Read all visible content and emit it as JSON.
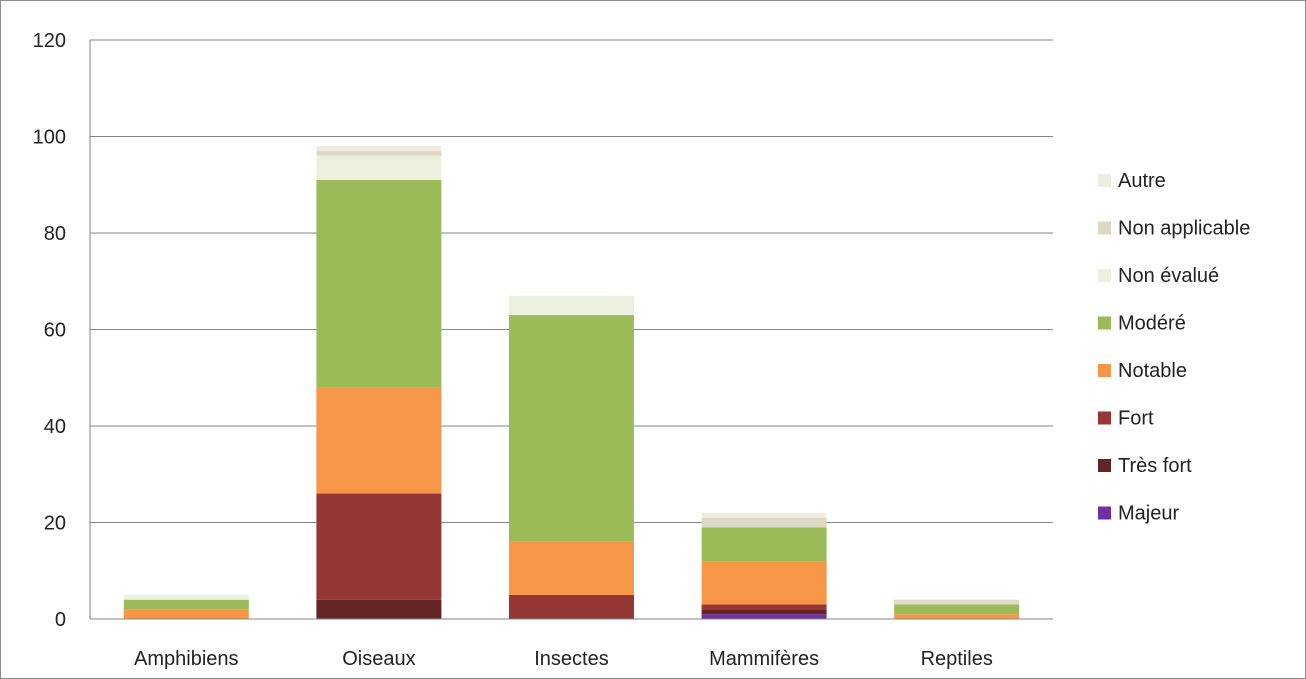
{
  "chart_data": {
    "type": "bar",
    "stacked": true,
    "categories": [
      "Amphibiens",
      "Oiseaux",
      "Insectes",
      "Mammifères",
      "Reptiles"
    ],
    "ylim": [
      0,
      120
    ],
    "yticks": [
      "0",
      "20",
      "40",
      "60",
      "80",
      "100",
      "120"
    ],
    "grid": true,
    "legend_position": "right",
    "series": [
      {
        "name": "Majeur",
        "color": "#7030a0",
        "values": [
          0,
          0,
          0,
          1,
          0
        ]
      },
      {
        "name": "Très fort",
        "color": "#632523",
        "values": [
          0,
          4,
          0,
          1,
          0
        ]
      },
      {
        "name": "Fort",
        "color": "#953735",
        "values": [
          0,
          22,
          5,
          1,
          0
        ]
      },
      {
        "name": "Notable",
        "color": "#f79646",
        "values": [
          2,
          22,
          11,
          9,
          1
        ]
      },
      {
        "name": "Modéré",
        "color": "#9bbb59",
        "values": [
          2,
          43,
          47,
          7,
          2
        ]
      },
      {
        "name": "Non évalué",
        "color": "#ebf1de",
        "values": [
          1,
          5,
          4,
          0,
          0
        ]
      },
      {
        "name": "Non applicable",
        "color": "#ddd9c4",
        "values": [
          0,
          1,
          0,
          2,
          1
        ]
      },
      {
        "name": "Autre",
        "color": "#eeece1",
        "values": [
          0,
          1,
          0,
          1,
          0
        ]
      }
    ]
  }
}
